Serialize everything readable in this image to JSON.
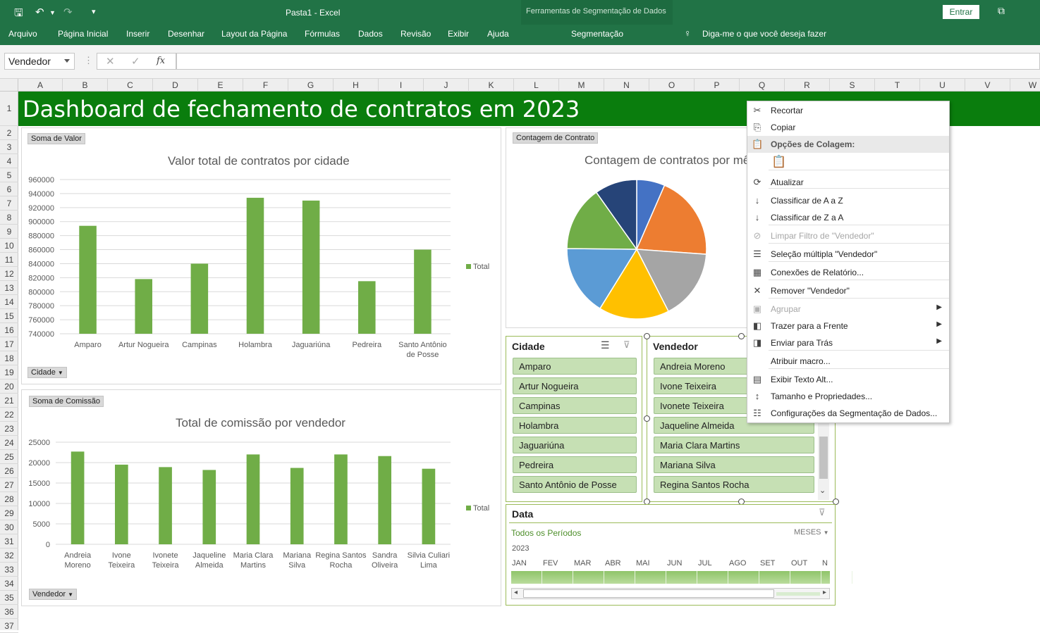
{
  "window": {
    "title": "Pasta1  -  Excel",
    "context_tools": "Ferramentas de Segmentação de Dados",
    "signin": "Entrar"
  },
  "ribbon": {
    "tabs": [
      "Arquivo",
      "Página Inicial",
      "Inserir",
      "Desenhar",
      "Layout da Página",
      "Fórmulas",
      "Dados",
      "Revisão",
      "Exibir",
      "Ajuda"
    ],
    "context_tab": "Segmentação",
    "tell_me": "Diga-me o que você deseja fazer"
  },
  "formula": {
    "name_box": "Vendedor",
    "fx": "fx"
  },
  "sheet": {
    "columns": [
      "A",
      "B",
      "C",
      "D",
      "E",
      "F",
      "G",
      "H",
      "I",
      "J",
      "K",
      "L",
      "M",
      "N",
      "O",
      "P",
      "Q",
      "R",
      "S",
      "T",
      "U",
      "V",
      "W"
    ],
    "rows": [
      "1",
      "2",
      "3",
      "4",
      "5",
      "6",
      "7",
      "8",
      "9",
      "10",
      "11",
      "12",
      "13",
      "14",
      "15",
      "16",
      "17",
      "18",
      "19",
      "20",
      "21",
      "22",
      "23",
      "24",
      "25",
      "26",
      "27",
      "28",
      "29",
      "30",
      "31",
      "32",
      "33",
      "34",
      "35",
      "36",
      "37"
    ],
    "banner": "Dashboard de fechamento de contratos em 2023"
  },
  "chart1": {
    "field_button": "Soma de Valor",
    "axis_button": "Cidade",
    "legend": "Total"
  },
  "chart2": {
    "field_button": "Soma de Comissão",
    "axis_button": "Vendedor",
    "legend": "Total"
  },
  "chart3": {
    "field_button": "Contagem de Contrato",
    "title": "Contagem de contratos por mês"
  },
  "chart_data": [
    {
      "type": "bar",
      "title": "Valor total de contratos por cidade",
      "categories": [
        "Amparo",
        "Artur Nogueira",
        "Campinas",
        "Holambra",
        "Jaguariúna",
        "Pedreira",
        "Santo Antônio de Posse"
      ],
      "series": [
        {
          "name": "Total",
          "values": [
            894000,
            818000,
            840000,
            934000,
            930000,
            815000,
            860000
          ]
        }
      ],
      "ylim": [
        740000,
        960000
      ],
      "yticks": [
        "960000",
        "940000",
        "920000",
        "900000",
        "880000",
        "860000",
        "840000",
        "820000",
        "800000",
        "780000",
        "760000",
        "740000"
      ],
      "color": "#70ad47"
    },
    {
      "type": "bar",
      "title": "Total de comissão por vendedor",
      "categories": [
        "Andreia Moreno",
        "Ivone Teixeira",
        "Ivonete Teixeira",
        "Jaqueline Almeida",
        "Maria Clara Martins",
        "Mariana Silva",
        "Regina Santos Rocha",
        "Sandra Oliveira",
        "Silvia Culiari Lima"
      ],
      "series": [
        {
          "name": "Total",
          "values": [
            22700,
            19500,
            18900,
            18200,
            22000,
            18700,
            22000,
            21600,
            18500
          ]
        }
      ],
      "ylim": [
        0,
        25000
      ],
      "yticks": [
        "25000",
        "20000",
        "15000",
        "10000",
        "5000",
        "0"
      ],
      "color": "#70ad47"
    },
    {
      "type": "pie",
      "title": "Contagem de contratos por mês",
      "values": [
        1,
        3,
        2.5,
        2.5,
        2.5,
        2.3,
        1.5
      ],
      "colors": [
        "#4472c4",
        "#ed7d31",
        "#a5a5a5",
        "#ffc000",
        "#5b9bd5",
        "#70ad47",
        "#264478"
      ]
    }
  ],
  "slicers": {
    "cidade": {
      "title": "Cidade",
      "items": [
        "Amparo",
        "Artur Nogueira",
        "Campinas",
        "Holambra",
        "Jaguariúna",
        "Pedreira",
        "Santo Antônio de Posse"
      ]
    },
    "vendedor": {
      "title": "Vendedor",
      "items": [
        "Andreia Moreno",
        "Ivone Teixeira",
        "Ivonete Teixeira",
        "Jaqueline Almeida",
        "Maria Clara Martins",
        "Mariana Silva",
        "Regina Santos Rocha"
      ]
    }
  },
  "timeline": {
    "title": "Data",
    "all_periods": "Todos os Períodos",
    "level": "MESES",
    "year": "2023",
    "months": [
      "JAN",
      "FEV",
      "MAR",
      "ABR",
      "MAI",
      "JUN",
      "JUL",
      "AGO",
      "SET",
      "OUT",
      "N"
    ]
  },
  "context_menu": [
    {
      "label": "Recortar",
      "icon": "scissors-icon",
      "glyph": "✂",
      "enabled": true
    },
    {
      "label": "Copiar",
      "icon": "copy-icon",
      "glyph": "⎘",
      "enabled": true
    },
    {
      "label": "Opções de Colagem:",
      "icon": "paste-options-icon",
      "glyph": "📋",
      "enabled": true,
      "header": true
    },
    {
      "label": "",
      "icon": "paste-icon",
      "glyph": "📋",
      "enabled": true,
      "paste": true
    },
    {
      "label": "Atualizar",
      "icon": "refresh-icon",
      "glyph": "⟳",
      "enabled": true
    },
    {
      "label": "Classificar de A a Z",
      "icon": "sort-az-icon",
      "glyph": "↓",
      "enabled": true
    },
    {
      "label": "Classificar de Z a A",
      "icon": "sort-za-icon",
      "glyph": "↓",
      "enabled": true
    },
    {
      "label": "Limpar Filtro de \"Vendedor\"",
      "icon": "clear-filter-icon",
      "glyph": "⊘",
      "enabled": false
    },
    {
      "label": "Seleção múltipla \"Vendedor\"",
      "icon": "multiselect-icon",
      "glyph": "☰",
      "enabled": true
    },
    {
      "label": "Conexões de Relatório...",
      "icon": "report-connections-icon",
      "glyph": "▦",
      "enabled": true
    },
    {
      "label": "Remover \"Vendedor\"",
      "icon": "remove-icon",
      "glyph": "✕",
      "enabled": true
    },
    {
      "label": "Agrupar",
      "icon": "group-icon",
      "glyph": "▣",
      "enabled": false,
      "submenu": true
    },
    {
      "label": "Trazer para a Frente",
      "icon": "bring-front-icon",
      "glyph": "◧",
      "enabled": true,
      "submenu": true
    },
    {
      "label": "Enviar para Trás",
      "icon": "send-back-icon",
      "glyph": "◨",
      "enabled": true,
      "submenu": true
    },
    {
      "label": "Atribuir macro...",
      "icon": "",
      "glyph": "",
      "enabled": true
    },
    {
      "label": "Exibir Texto Alt...",
      "icon": "alt-text-icon",
      "glyph": "▤",
      "enabled": true
    },
    {
      "label": "Tamanho e Propriedades...",
      "icon": "size-properties-icon",
      "glyph": "↕",
      "enabled": true
    },
    {
      "label": "Configurações da Segmentação de Dados...",
      "icon": "slicer-settings-icon",
      "glyph": "☷",
      "enabled": true
    }
  ]
}
